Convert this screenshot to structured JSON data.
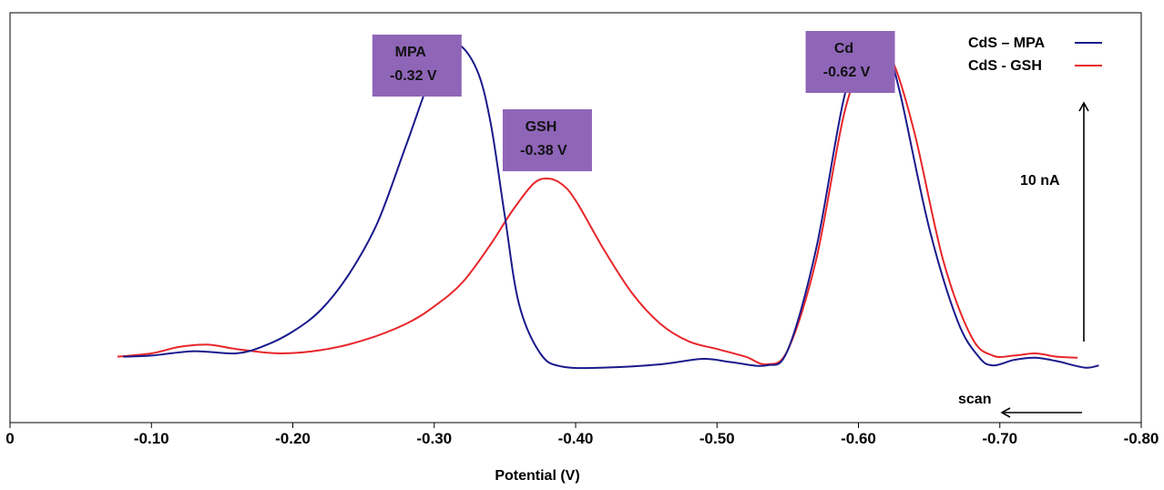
{
  "chart_data": {
    "type": "line",
    "title": "",
    "xlabel": "Potential (V)",
    "ylabel": "",
    "xlim": [
      0,
      -0.8
    ],
    "x_direction": "reversed",
    "grid": false,
    "legend_position": "top-right",
    "xticks": [
      {
        "value": 0,
        "label": "0"
      },
      {
        "value": -0.1,
        "label": "-0.10"
      },
      {
        "value": -0.2,
        "label": "-0.20"
      },
      {
        "value": -0.3,
        "label": "-0.30"
      },
      {
        "value": -0.4,
        "label": "-0.40"
      },
      {
        "value": -0.5,
        "label": "-0.50"
      },
      {
        "value": -0.6,
        "label": "-0.60"
      },
      {
        "value": -0.7,
        "label": "-0.70"
      },
      {
        "value": -0.8,
        "label": "-0.80"
      }
    ],
    "current_scale": {
      "label": "10 nA",
      "nA": 10
    },
    "scan_direction": {
      "label": "scan",
      "direction": "toward less negative potential"
    },
    "series": [
      {
        "name": "CdS – MPA",
        "color": "#1a1a8c",
        "points": [
          [
            -0.08,
            0.2
          ],
          [
            -0.1,
            0.3
          ],
          [
            -0.13,
            0.7
          ],
          [
            -0.16,
            0.5
          ],
          [
            -0.18,
            1.2
          ],
          [
            -0.2,
            2.5
          ],
          [
            -0.22,
            4.5
          ],
          [
            -0.24,
            7.8
          ],
          [
            -0.26,
            12.5
          ],
          [
            -0.28,
            19.5
          ],
          [
            -0.3,
            26.5
          ],
          [
            -0.315,
            28.8
          ],
          [
            -0.33,
            26.5
          ],
          [
            -0.34,
            21.5
          ],
          [
            -0.35,
            13.0
          ],
          [
            -0.36,
            5.0
          ],
          [
            -0.375,
            0.5
          ],
          [
            -0.39,
            -0.7
          ],
          [
            -0.42,
            -0.8
          ],
          [
            -0.46,
            -0.5
          ],
          [
            -0.49,
            0.0
          ],
          [
            -0.51,
            -0.3
          ],
          [
            -0.535,
            -0.6
          ],
          [
            -0.55,
            0.8
          ],
          [
            -0.57,
            10.0
          ],
          [
            -0.59,
            24.0
          ],
          [
            -0.605,
            29.0
          ],
          [
            -0.612,
            29.4
          ],
          [
            -0.62,
            28.5
          ],
          [
            -0.63,
            24.0
          ],
          [
            -0.65,
            12.0
          ],
          [
            -0.67,
            3.5
          ],
          [
            -0.685,
            0.2
          ],
          [
            -0.695,
            -0.6
          ],
          [
            -0.71,
            -0.1
          ],
          [
            -0.725,
            0.1
          ],
          [
            -0.74,
            -0.2
          ],
          [
            -0.76,
            -0.8
          ],
          [
            -0.77,
            -0.6
          ]
        ]
      },
      {
        "name": "CdS - GSH",
        "color": "#e8262a",
        "points": [
          [
            -0.076,
            0.2
          ],
          [
            -0.1,
            0.5
          ],
          [
            -0.12,
            1.1
          ],
          [
            -0.14,
            1.3
          ],
          [
            -0.16,
            0.9
          ],
          [
            -0.19,
            0.5
          ],
          [
            -0.22,
            0.8
          ],
          [
            -0.25,
            1.7
          ],
          [
            -0.28,
            3.2
          ],
          [
            -0.3,
            4.8
          ],
          [
            -0.32,
            7.0
          ],
          [
            -0.34,
            10.5
          ],
          [
            -0.355,
            13.5
          ],
          [
            -0.37,
            16.0
          ],
          [
            -0.38,
            16.5
          ],
          [
            -0.39,
            16.0
          ],
          [
            -0.4,
            14.5
          ],
          [
            -0.42,
            10.0
          ],
          [
            -0.44,
            6.0
          ],
          [
            -0.46,
            3.2
          ],
          [
            -0.48,
            1.6
          ],
          [
            -0.5,
            0.9
          ],
          [
            -0.52,
            0.2
          ],
          [
            -0.535,
            -0.5
          ],
          [
            -0.55,
            0.8
          ],
          [
            -0.57,
            9.0
          ],
          [
            -0.59,
            22.5
          ],
          [
            -0.605,
            27.5
          ],
          [
            -0.615,
            28.3
          ],
          [
            -0.625,
            27.0
          ],
          [
            -0.64,
            20.5
          ],
          [
            -0.66,
            9.0
          ],
          [
            -0.68,
            2.0
          ],
          [
            -0.695,
            0.3
          ],
          [
            -0.71,
            0.3
          ],
          [
            -0.725,
            0.5
          ],
          [
            -0.74,
            0.2
          ],
          [
            -0.755,
            0.1
          ]
        ]
      }
    ],
    "annotations": [
      {
        "line1": "MPA",
        "line2": "-0.32 V",
        "x": -0.32,
        "fill": "#8f65b8"
      },
      {
        "line1": "GSH",
        "line2": "-0.38 V",
        "x": -0.38,
        "fill": "#8f65b8"
      },
      {
        "line1": "Cd",
        "line2": "-0.62 V",
        "x": -0.62,
        "fill": "#8f65b8"
      }
    ]
  }
}
